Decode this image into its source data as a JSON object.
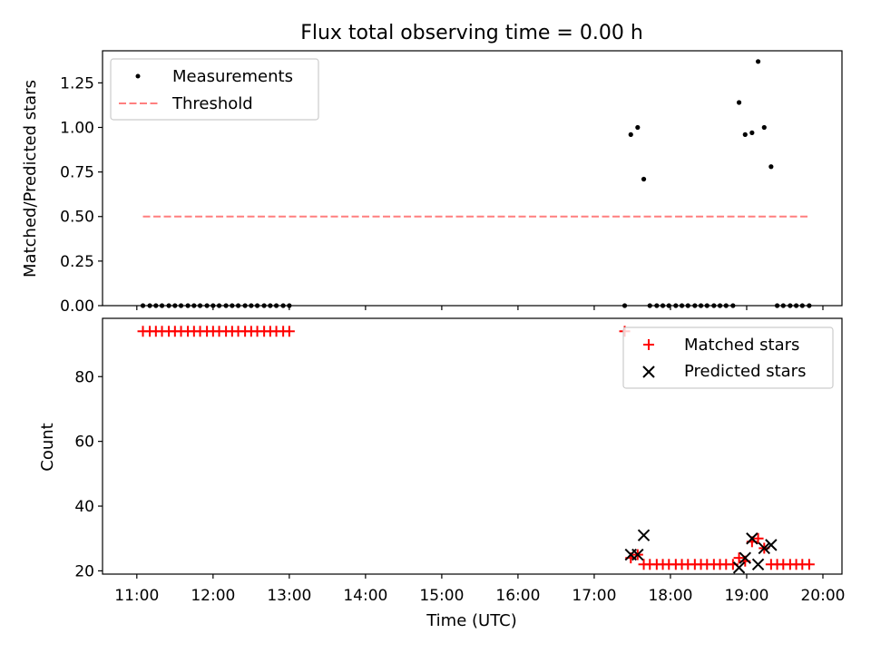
{
  "chart_data": [
    {
      "type": "scatter",
      "title": "Flux total observing time = 0.00 h",
      "ylabel": "Matched/Predicted stars",
      "xlabel": "",
      "xlim": [
        10.55,
        20.25
      ],
      "ylim": [
        0.0,
        1.43
      ],
      "yticks": [
        0.0,
        0.25,
        0.5,
        0.75,
        1.0,
        1.25
      ],
      "ytick_labels": [
        "0.00",
        "0.25",
        "0.50",
        "0.75",
        "1.00",
        "1.25"
      ],
      "legend": {
        "placement": "upper-left",
        "entries": [
          "Measurements",
          "Threshold"
        ]
      },
      "series": [
        {
          "name": "Measurements",
          "marker": "dot",
          "color": "#000000",
          "x": [
            11.08,
            11.17,
            11.25,
            11.33,
            11.42,
            11.5,
            11.58,
            11.67,
            11.75,
            11.83,
            11.92,
            12.0,
            12.08,
            12.17,
            12.25,
            12.33,
            12.42,
            12.5,
            12.58,
            12.67,
            12.75,
            12.83,
            12.92,
            13.0,
            17.4,
            17.48,
            17.57,
            17.65,
            17.73,
            17.82,
            17.9,
            17.98,
            18.07,
            18.15,
            18.23,
            18.32,
            18.4,
            18.48,
            18.57,
            18.65,
            18.73,
            18.82,
            18.9,
            18.98,
            19.07,
            19.15,
            19.23,
            19.32,
            19.4,
            19.48,
            19.57,
            19.65,
            19.73,
            19.82
          ],
          "y": [
            0,
            0,
            0,
            0,
            0,
            0,
            0,
            0,
            0,
            0,
            0,
            0,
            0,
            0,
            0,
            0,
            0,
            0,
            0,
            0,
            0,
            0,
            0,
            0,
            0,
            0.96,
            1.0,
            0.71,
            0,
            0,
            0,
            0,
            0,
            0,
            0,
            0,
            0,
            0,
            0,
            0,
            0,
            0,
            1.14,
            0.96,
            0.97,
            1.37,
            1.0,
            0.78,
            0,
            0,
            0,
            0,
            0,
            0
          ]
        },
        {
          "name": "Threshold",
          "style": "dashed",
          "color": "#ff7f7f",
          "x": [
            11.08,
            19.82
          ],
          "y": [
            0.5,
            0.5
          ]
        }
      ]
    },
    {
      "type": "scatter",
      "title": "",
      "ylabel": "Count",
      "xlabel": "Time (UTC)",
      "xlim": [
        10.55,
        20.25
      ],
      "ylim": [
        19.0,
        98.0
      ],
      "yticks": [
        20,
        40,
        60,
        80
      ],
      "ytick_labels": [
        "20",
        "40",
        "60",
        "80"
      ],
      "xticks": [
        11,
        12,
        13,
        14,
        15,
        16,
        17,
        18,
        19,
        20
      ],
      "xtick_labels": [
        "11:00",
        "12:00",
        "13:00",
        "14:00",
        "15:00",
        "16:00",
        "17:00",
        "18:00",
        "19:00",
        "20:00"
      ],
      "legend": {
        "placement": "upper-right",
        "entries": [
          "Matched stars",
          "Predicted stars"
        ]
      },
      "series": [
        {
          "name": "Matched stars",
          "marker": "plus",
          "color": "#ff0000",
          "x": [
            11.08,
            11.17,
            11.25,
            11.33,
            11.42,
            11.5,
            11.58,
            11.67,
            11.75,
            11.83,
            11.92,
            12.0,
            12.08,
            12.17,
            12.25,
            12.33,
            12.42,
            12.5,
            12.58,
            12.67,
            12.75,
            12.83,
            12.92,
            13.0,
            17.4,
            17.48,
            17.57,
            17.65,
            17.73,
            17.82,
            17.9,
            17.98,
            18.07,
            18.15,
            18.23,
            18.32,
            18.4,
            18.48,
            18.57,
            18.65,
            18.73,
            18.82,
            18.9,
            18.98,
            19.07,
            19.15,
            19.23,
            19.32,
            19.4,
            19.48,
            19.57,
            19.65,
            19.73,
            19.82
          ],
          "y": [
            94,
            94,
            94,
            94,
            94,
            94,
            94,
            94,
            94,
            94,
            94,
            94,
            94,
            94,
            94,
            94,
            94,
            94,
            94,
            94,
            94,
            94,
            94,
            94,
            94,
            24,
            25,
            22,
            22,
            22,
            22,
            22,
            22,
            22,
            22,
            22,
            22,
            22,
            22,
            22,
            22,
            22,
            24,
            23,
            29,
            30,
            27,
            22,
            22,
            22,
            22,
            22,
            22,
            22
          ]
        },
        {
          "name": "Predicted stars",
          "marker": "x",
          "color": "#000000",
          "x": [
            17.48,
            17.57,
            17.65,
            18.9,
            18.98,
            19.07,
            19.15,
            19.23,
            19.32
          ],
          "y": [
            25,
            25,
            31,
            21,
            24,
            30,
            22,
            27,
            28
          ]
        }
      ]
    }
  ]
}
